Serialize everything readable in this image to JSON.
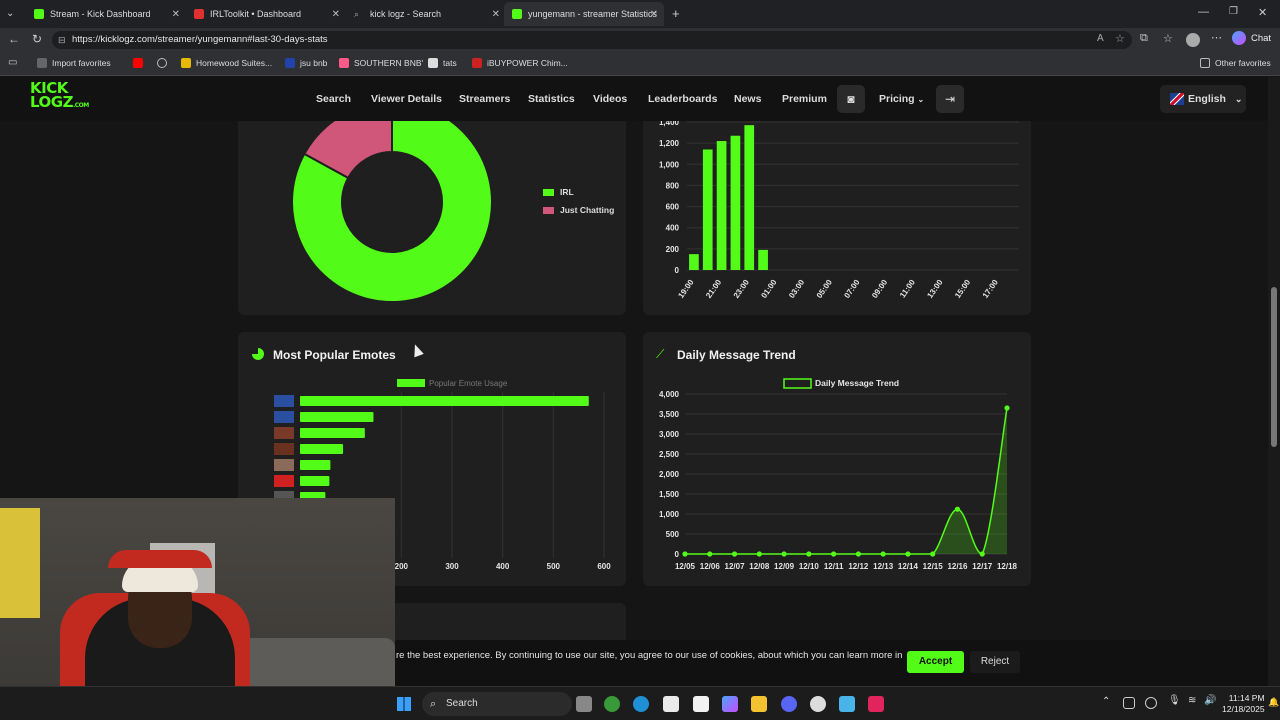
{
  "browser": {
    "tabs": [
      {
        "title": "Stream - Kick Dashboard",
        "color": "#53fc18"
      },
      {
        "title": "IRLToolkit • Dashboard",
        "color": "#e03030"
      },
      {
        "title": "kick logz - Search",
        "color": "#888888"
      },
      {
        "title": "yungemann - streamer Statistics",
        "color": "#53fc18"
      }
    ],
    "url": "https://kicklogz.com/streamer/yungemann#last-30-days-stats",
    "chat_label": "Chat",
    "bookmarks": [
      {
        "label": "Import favorites",
        "color": "#888888"
      },
      {
        "label": "",
        "color": "#ff0000"
      },
      {
        "label": "",
        "color": "#999999"
      },
      {
        "label": "Homewood Suites...",
        "color": "#e6b800"
      },
      {
        "label": "jsu bnb",
        "color": "#2244aa"
      },
      {
        "label": "SOUTHERN BNB'",
        "color": "#ff5a8a"
      },
      {
        "label": "tats",
        "color": "#dddddd"
      },
      {
        "label": "iBUYPOWER Chim...",
        "color": "#cc2222"
      }
    ],
    "other_favorites": "Other favorites"
  },
  "site": {
    "logo_line1": "KICK",
    "logo_line2": "LOGZ",
    "logo_suffix": ".COM",
    "nav": [
      "Search",
      "Viewer Details",
      "Streamers",
      "Statistics",
      "Videos",
      "Leaderboards",
      "News",
      "Premium"
    ],
    "pricing": "Pricing",
    "language": "English"
  },
  "categories_card": {
    "chart_data": {
      "type": "pie",
      "labels": [
        "IRL",
        "Just Chatting"
      ],
      "values": [
        83,
        17
      ],
      "colors": [
        "#53fc18",
        "#d0567a"
      ]
    }
  },
  "hours_card": {
    "chart_data": {
      "type": "bar",
      "categories": [
        "19:00",
        "20:00",
        "21:00",
        "22:00",
        "23:00",
        "00:00",
        "01:00",
        "02:00",
        "03:00",
        "04:00",
        "05:00",
        "06:00",
        "07:00",
        "08:00",
        "09:00",
        "10:00",
        "11:00",
        "12:00",
        "13:00",
        "14:00",
        "15:00",
        "16:00",
        "17:00",
        "18:00"
      ],
      "tick_labels": [
        "19:00",
        "21:00",
        "23:00",
        "01:00",
        "03:00",
        "05:00",
        "07:00",
        "09:00",
        "11:00",
        "13:00",
        "15:00",
        "17:00"
      ],
      "values": [
        150,
        1140,
        1220,
        1270,
        1370,
        190,
        0,
        0,
        0,
        0,
        0,
        0,
        0,
        0,
        0,
        0,
        0,
        0,
        0,
        0,
        0,
        0,
        0,
        0
      ],
      "y_ticks": [
        "1,400",
        "1,200",
        "1,000",
        "800",
        "600",
        "400",
        "200",
        "0"
      ],
      "ylim": [
        0,
        1400
      ]
    }
  },
  "emotes_card": {
    "title": "Most Popular Emotes",
    "chart_data": {
      "type": "bar",
      "orientation": "horizontal",
      "legend": "Popular Emote Usage",
      "values": [
        570,
        145,
        128,
        85,
        60,
        58,
        50
      ],
      "x_ticks": [
        "200",
        "300",
        "400",
        "500",
        "600"
      ],
      "xlim": [
        0,
        600
      ]
    }
  },
  "trend_card": {
    "title": "Daily Message Trend",
    "chart_data": {
      "type": "area",
      "legend": "Daily Message Trend",
      "x": [
        "12/05",
        "12/06",
        "12/07",
        "12/08",
        "12/09",
        "12/10",
        "12/11",
        "12/12",
        "12/13",
        "12/14",
        "12/15",
        "12/16",
        "12/17",
        "12/18"
      ],
      "y": [
        0,
        0,
        0,
        0,
        0,
        0,
        0,
        0,
        0,
        0,
        0,
        1120,
        0,
        3650
      ],
      "y_ticks": [
        "4,000",
        "3,500",
        "3,000",
        "2,500",
        "2,000",
        "1,500",
        "1,000",
        "500",
        "0"
      ],
      "ylim": [
        0,
        4000
      ]
    }
  },
  "cookie": {
    "text": "re the best experience. By continuing to use our site, you agree to our use of cookies, about which you can learn more in",
    "accept": "Accept",
    "reject": "Reject"
  },
  "taskbar": {
    "search": "Search",
    "time": "11:14 PM",
    "date": "12/18/2025"
  }
}
